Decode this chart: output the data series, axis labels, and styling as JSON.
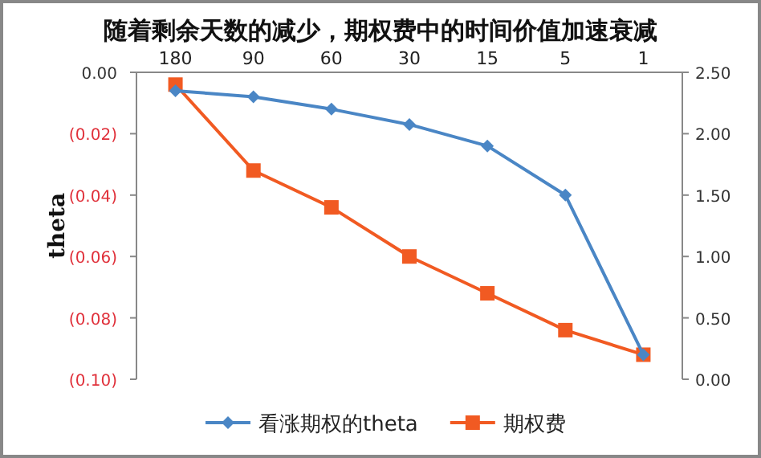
{
  "chart_data": {
    "type": "line",
    "title": "随着剩余天数的减少，期权费中的时间价值加速衰减",
    "ylabel": "theta",
    "categories": [
      "180",
      "90",
      "60",
      "30",
      "15",
      "5",
      "1"
    ],
    "series": [
      {
        "name": "看涨期权的theta",
        "color": "#4a86c5",
        "marker": "diamond",
        "values": [
          -0.006,
          -0.008,
          -0.012,
          -0.017,
          -0.024,
          -0.04,
          -0.092
        ]
      },
      {
        "name": "期权费",
        "color": "#f15a22",
        "marker": "square",
        "axis": "y2",
        "values": [
          2.4,
          1.7,
          1.4,
          1.0,
          0.7,
          0.4,
          0.2
        ]
      }
    ],
    "ylim": [
      -0.1,
      0
    ],
    "yticks": [
      {
        "value": 0,
        "label": "0.00"
      },
      {
        "value": -0.02,
        "label": "(0.02)"
      },
      {
        "value": -0.04,
        "label": "(0.04)"
      },
      {
        "value": -0.06,
        "label": "(0.06)"
      },
      {
        "value": -0.08,
        "label": "(0.08)"
      },
      {
        "value": -0.1,
        "label": "(0.10)"
      }
    ],
    "y2lim": [
      0,
      2.5
    ],
    "y2ticks": [
      {
        "value": 0,
        "label": "0.00"
      },
      {
        "value": 0.5,
        "label": "0.50"
      },
      {
        "value": 1,
        "label": "1.00"
      },
      {
        "value": 1.5,
        "label": "1.50"
      },
      {
        "value": 2,
        "label": "2.00"
      },
      {
        "value": 2.5,
        "label": "2.50"
      }
    ],
    "grid": false,
    "legend": "bottom"
  }
}
